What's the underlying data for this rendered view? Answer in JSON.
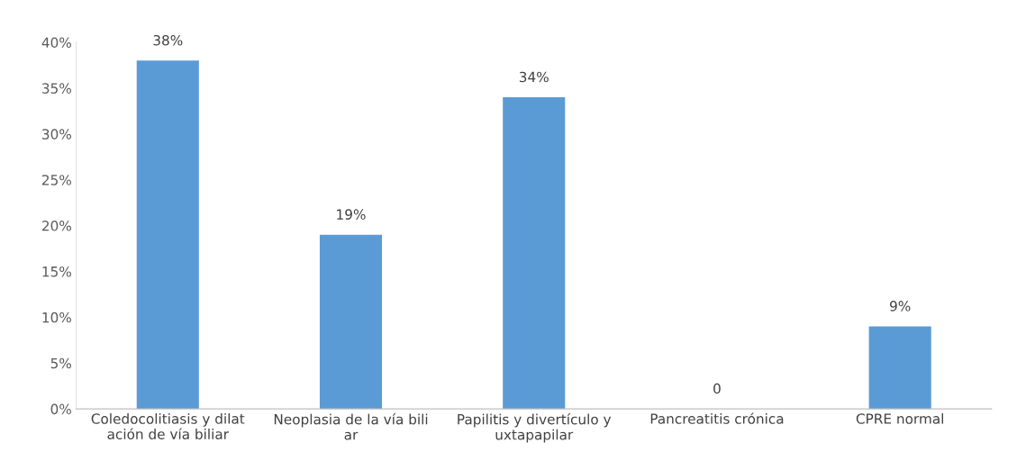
{
  "chart_data": {
    "type": "bar",
    "categories": [
      "Coledocolitiasis y dilat\nación de vía biliar",
      "Neoplasia de la vía bili\nar",
      "Papilitis y divertículo y\nuxtapapilar",
      "Pancreatitis crónica",
      "CPRE normal"
    ],
    "values": [
      38,
      19,
      34,
      0,
      9
    ],
    "value_labels": [
      "38%",
      "19%",
      "34%",
      "0",
      "9%"
    ],
    "color": "#5b9bd5",
    "ylim": [
      0,
      40
    ],
    "yticks": [
      {
        "value": 0,
        "label": "0%"
      },
      {
        "value": 5,
        "label": "5%"
      },
      {
        "value": 10,
        "label": "10%"
      },
      {
        "value": 15,
        "label": "15%"
      },
      {
        "value": 20,
        "label": "20%"
      },
      {
        "value": 25,
        "label": "25%"
      },
      {
        "value": 30,
        "label": "30%"
      },
      {
        "value": 35,
        "label": "35%"
      },
      {
        "value": 40,
        "label": "40%"
      }
    ],
    "grid": false,
    "legend": false
  }
}
